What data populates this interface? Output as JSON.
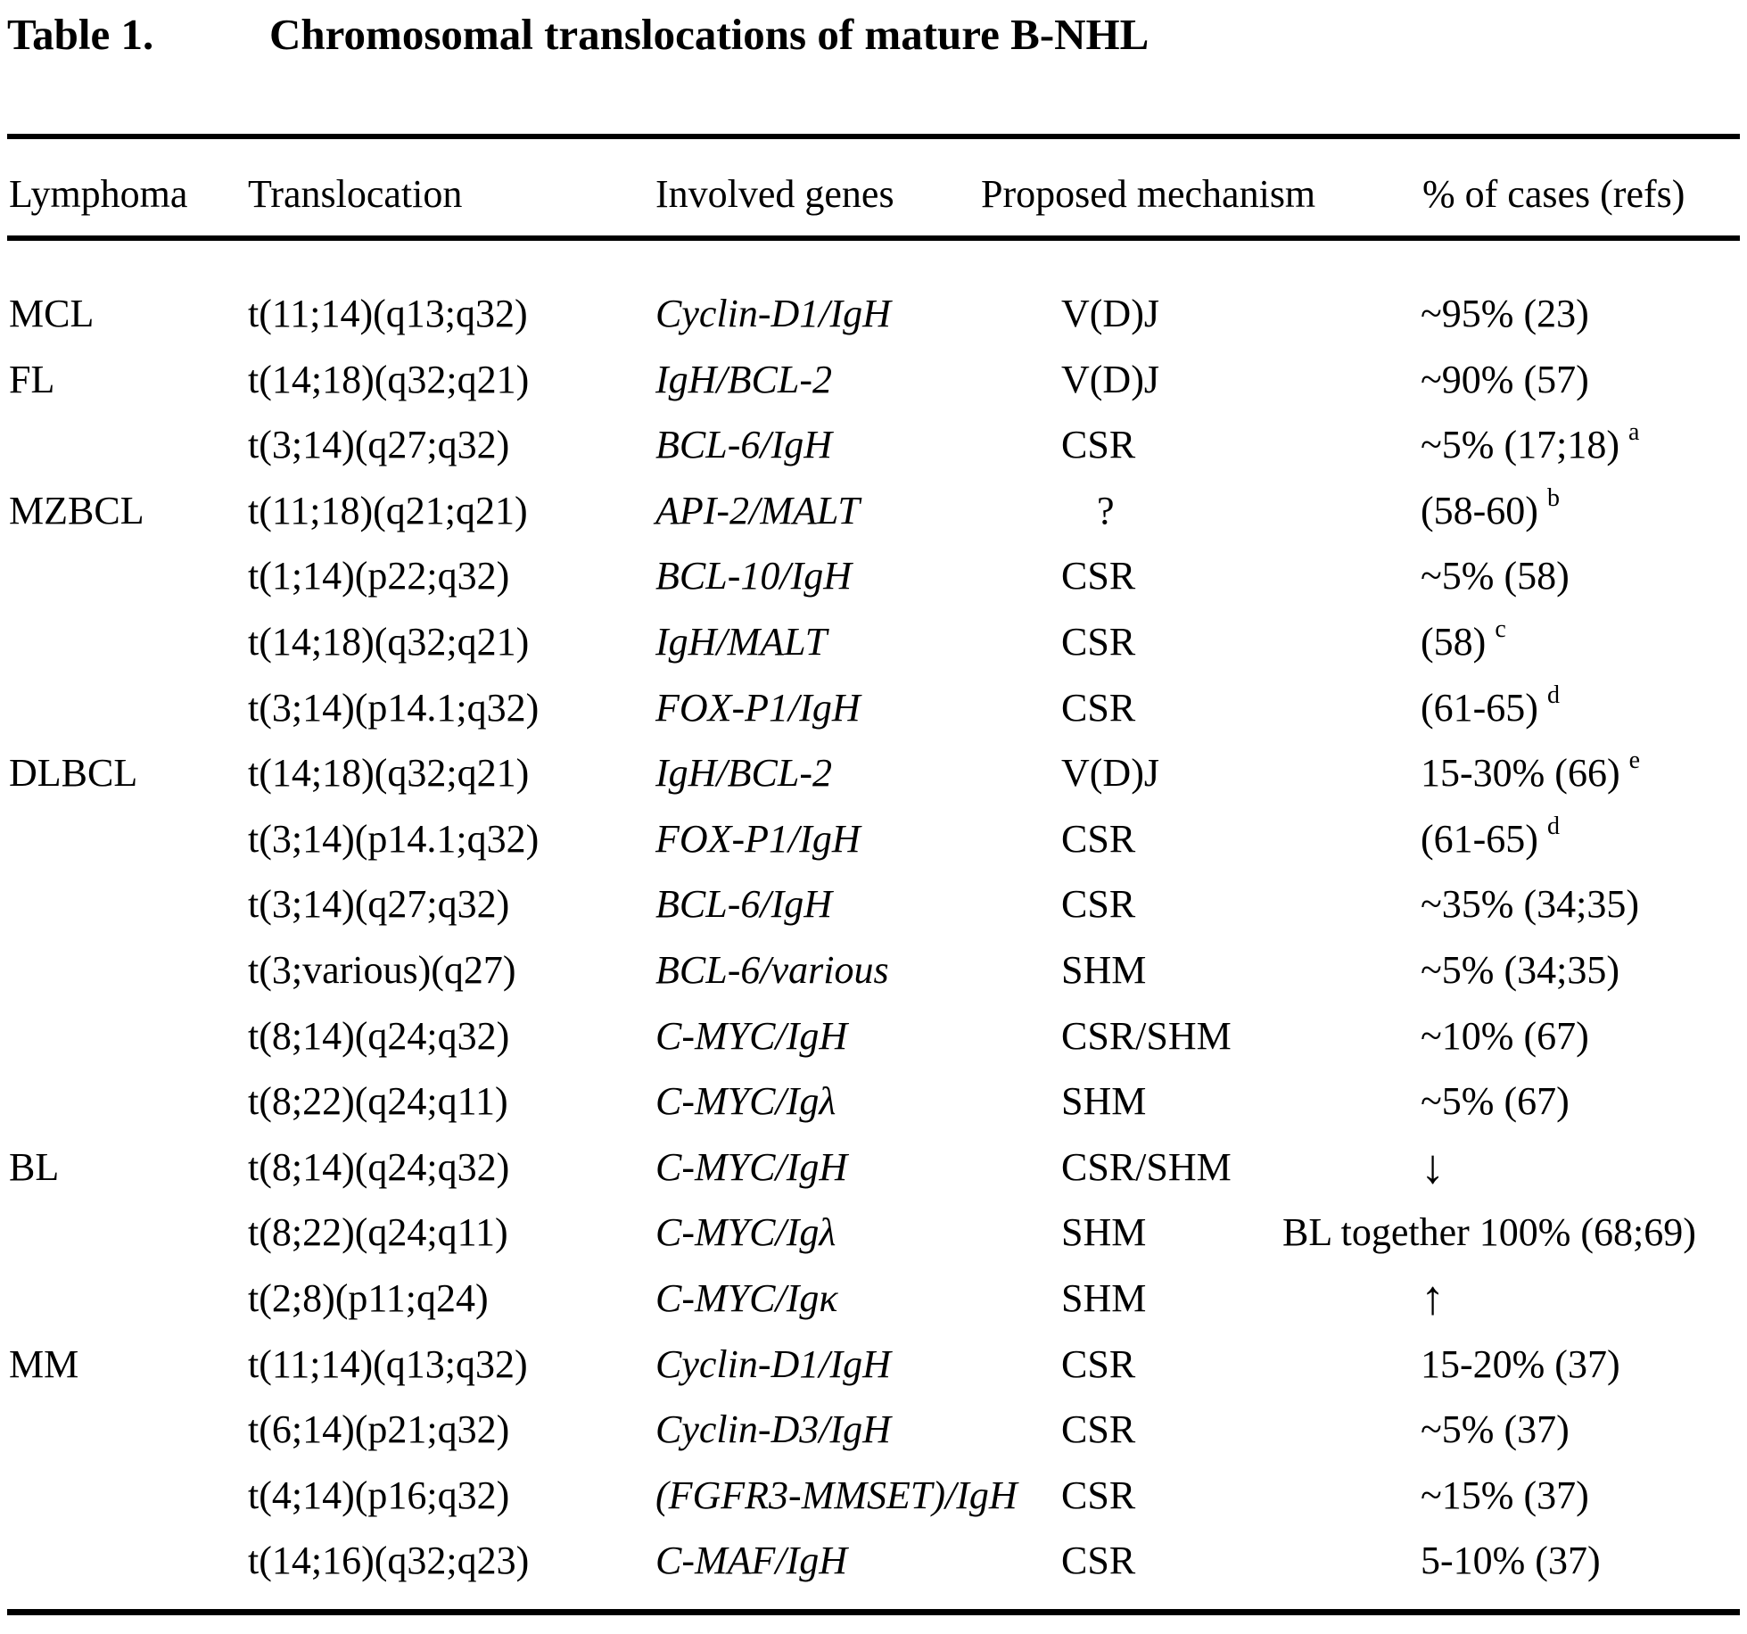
{
  "colors": {
    "background": "#ffffff",
    "text": "#000000",
    "rule": "#000000"
  },
  "title": {
    "label": "Table 1.",
    "heading": "Chromosomal translocations of mature B-NHL"
  },
  "table": {
    "columns": [
      "Lymphoma",
      "Translocation",
      "Involved genes",
      "Proposed mechanism",
      "% of cases (refs)"
    ],
    "rows": [
      {
        "lymphoma": "MCL",
        "translocation": "t(11;14)(q13;q32)",
        "genes": "Cyclin-D1/IgH",
        "mechanism": "V(D)J",
        "cases": "~95% (23)",
        "sup": ""
      },
      {
        "lymphoma": "FL",
        "translocation": "t(14;18)(q32;q21)",
        "genes": "IgH/BCL-2",
        "mechanism": "V(D)J",
        "cases": "~90% (57)",
        "sup": ""
      },
      {
        "lymphoma": "",
        "translocation": "t(3;14)(q27;q32)",
        "genes": "BCL-6/IgH",
        "mechanism": "CSR",
        "cases": "~5% (17;18)",
        "sup": "a"
      },
      {
        "lymphoma": "MZBCL",
        "translocation": "t(11;18)(q21;q21)",
        "genes": "API-2/MALT",
        "mechanism": "?",
        "cases": "(58-60)",
        "sup": "b",
        "mech_indent": true
      },
      {
        "lymphoma": "",
        "translocation": "t(1;14)(p22;q32)",
        "genes": "BCL-10/IgH",
        "mechanism": "CSR",
        "cases": "~5% (58)",
        "sup": ""
      },
      {
        "lymphoma": "",
        "translocation": "t(14;18)(q32;q21)",
        "genes": "IgH/MALT",
        "mechanism": "CSR",
        "cases": "(58)",
        "sup": "c"
      },
      {
        "lymphoma": "",
        "translocation": "t(3;14)(p14.1;q32)",
        "genes": "FOX-P1/IgH",
        "mechanism": "CSR",
        "cases": "(61-65)",
        "sup": "d"
      },
      {
        "lymphoma": "DLBCL",
        "translocation": "t(14;18)(q32;q21)",
        "genes": "IgH/BCL-2",
        "mechanism": "V(D)J",
        "cases": "15-30% (66)",
        "sup": "e"
      },
      {
        "lymphoma": "",
        "translocation": "t(3;14)(p14.1;q32)",
        "genes": "FOX-P1/IgH",
        "mechanism": "CSR",
        "cases": "(61-65)",
        "sup": "d"
      },
      {
        "lymphoma": "",
        "translocation": "t(3;14)(q27;q32)",
        "genes": "BCL-6/IgH",
        "mechanism": "CSR",
        "cases": "~35% (34;35)",
        "sup": ""
      },
      {
        "lymphoma": "",
        "translocation": "t(3;various)(q27)",
        "genes": "BCL-6/various",
        "mechanism": "SHM",
        "cases": "~5% (34;35)",
        "sup": ""
      },
      {
        "lymphoma": "",
        "translocation": "t(8;14)(q24;q32)",
        "genes": "C-MYC/IgH",
        "mechanism": "CSR/SHM",
        "cases": "~10% (67)",
        "sup": ""
      },
      {
        "lymphoma": "",
        "translocation": "t(8;22)(q24;q11)",
        "genes": "C-MYC/Igλ",
        "mechanism": "SHM",
        "cases": "~5% (67)",
        "sup": ""
      },
      {
        "lymphoma": "BL",
        "translocation": "t(8;14)(q24;q32)",
        "genes": "C-MYC/IgH",
        "mechanism": "CSR/SHM",
        "cases": "↓",
        "sup": "",
        "arrow": true
      },
      {
        "lymphoma": "",
        "translocation": "t(8;22)(q24;q11)",
        "genes": "C-MYC/Igλ",
        "mechanism": "SHM",
        "cases": "BL together 100% (68;69)",
        "sup": "",
        "shift_left": true
      },
      {
        "lymphoma": "",
        "translocation": "t(2;8)(p11;q24)",
        "genes": "C-MYC/Igκ",
        "mechanism": "SHM",
        "cases": "↑",
        "sup": "",
        "arrow": true
      },
      {
        "lymphoma": "MM",
        "translocation": "t(11;14)(q13;q32)",
        "genes": "Cyclin-D1/IgH",
        "mechanism": "CSR",
        "cases": "15-20% (37)",
        "sup": ""
      },
      {
        "lymphoma": "",
        "translocation": "t(6;14)(p21;q32)",
        "genes": "Cyclin-D3/IgH",
        "mechanism": "CSR",
        "cases": "~5% (37)",
        "sup": ""
      },
      {
        "lymphoma": "",
        "translocation": "t(4;14)(p16;q32)",
        "genes": "(FGFR3-MMSET)/IgH",
        "mechanism": "CSR",
        "cases": "~15% (37)",
        "sup": ""
      },
      {
        "lymphoma": "",
        "translocation": "t(14;16)(q32;q23)",
        "genes": "C-MAF/IgH",
        "mechanism": "CSR",
        "cases": "5-10% (37)",
        "sup": ""
      }
    ]
  }
}
